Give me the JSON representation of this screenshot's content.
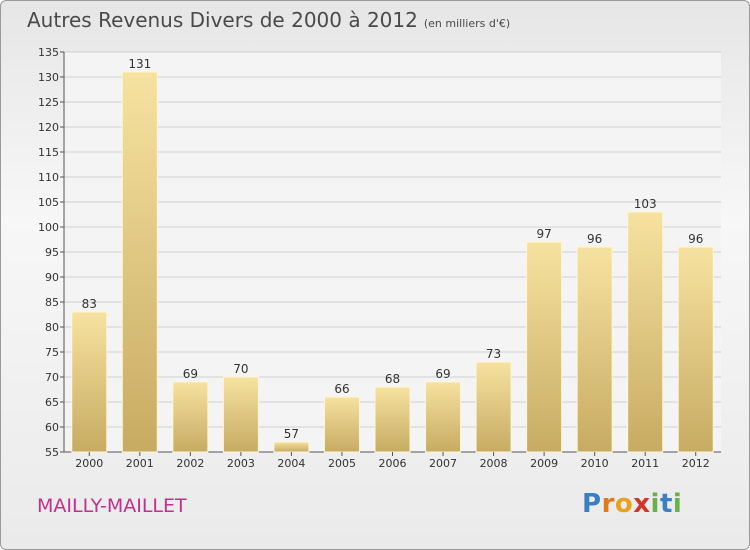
{
  "title": "Autres Revenus Divers de 2000 à 2012",
  "unit_note": "(en milliers d'€)",
  "commune": "MAILLY-MAILLET",
  "logo": {
    "letters": [
      "P",
      "r",
      "o",
      "x",
      "i",
      "t",
      "i"
    ],
    "colors": [
      "#3a7fc4",
      "#e07a1c",
      "#e8a21c",
      "#d2362b",
      "#6ab04c",
      "#3a7fc4",
      "#6ab04c"
    ]
  },
  "chart_data": {
    "type": "bar",
    "categories": [
      "2000",
      "2001",
      "2002",
      "2003",
      "2004",
      "2005",
      "2006",
      "2007",
      "2008",
      "2009",
      "2010",
      "2011",
      "2012"
    ],
    "values": [
      83,
      131,
      69,
      70,
      57,
      66,
      68,
      69,
      73,
      97,
      96,
      103,
      96
    ],
    "ylim": [
      55,
      135
    ],
    "yticks": [
      55,
      60,
      65,
      70,
      75,
      80,
      85,
      90,
      95,
      100,
      105,
      110,
      115,
      120,
      125,
      130,
      135
    ],
    "grid": true,
    "colors": {
      "bar_light": "#f6e2a0",
      "bar_dark": "#c7ab62",
      "grid": "#cfcfcf",
      "axis": "#555555"
    }
  }
}
